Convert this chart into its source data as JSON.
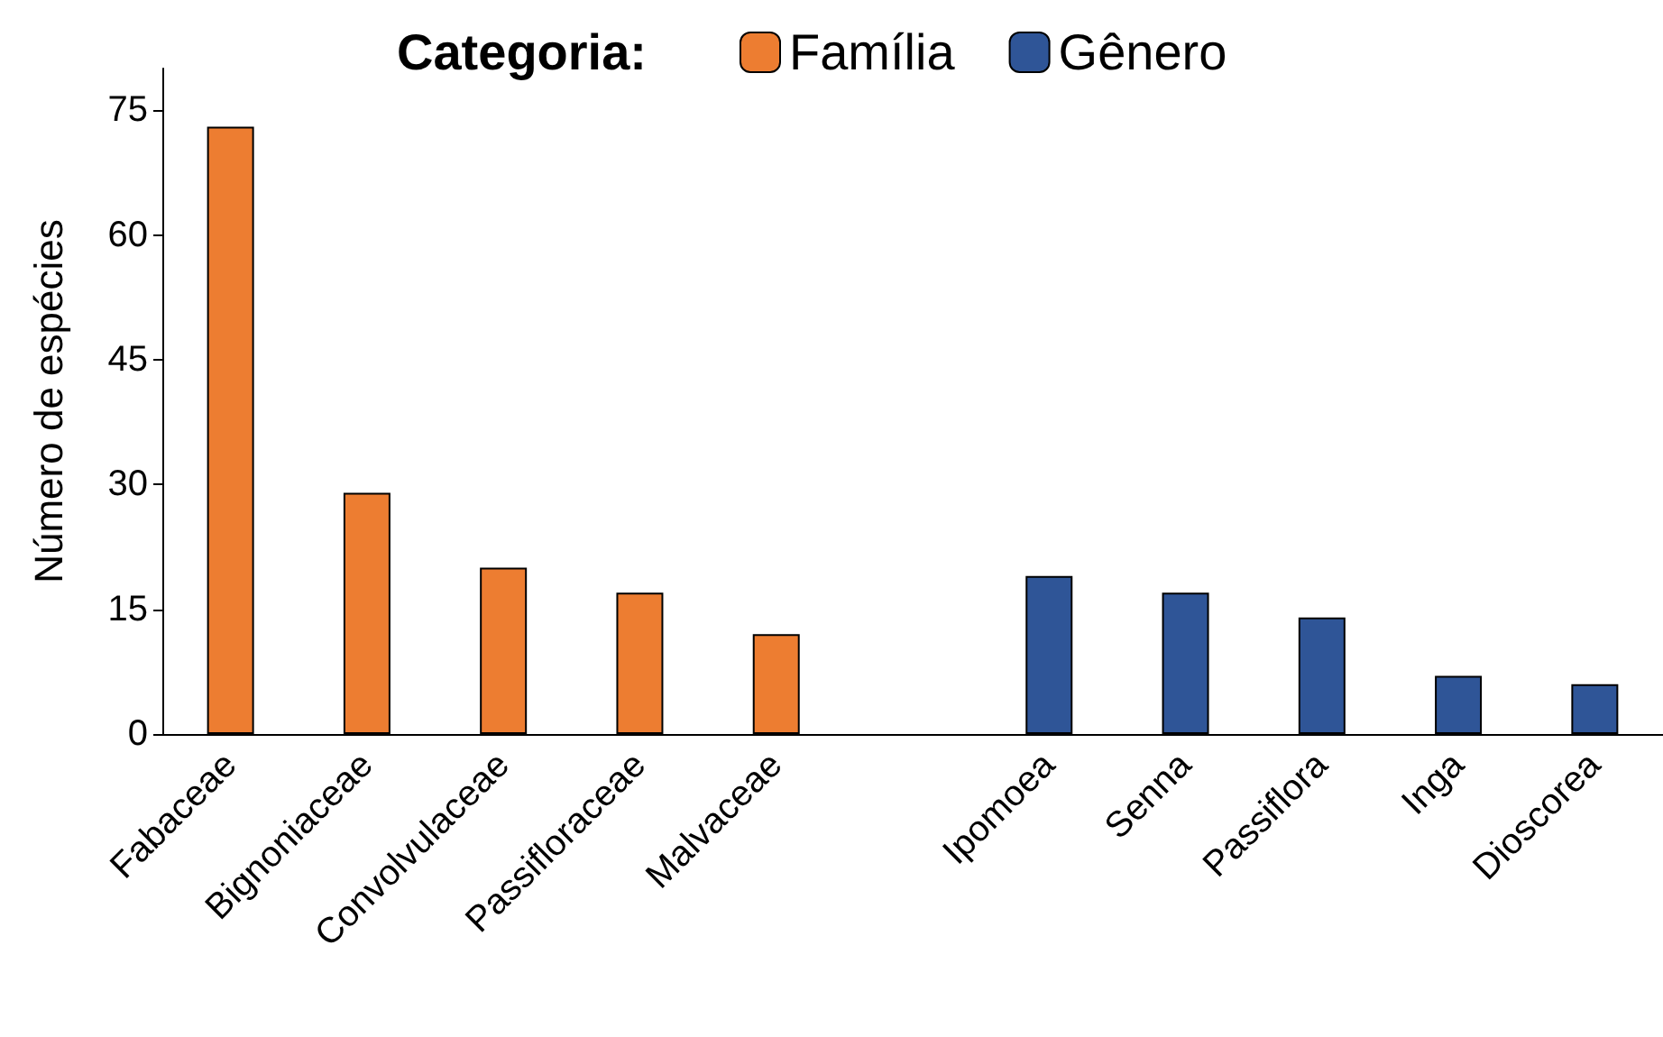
{
  "chart_data": {
    "type": "bar",
    "ylabel": "Número de espécies",
    "legend_title": "Categoria:",
    "legend": "top",
    "categories": [
      "Fabaceae",
      "Bignoniaceae",
      "Convolvulaceae",
      "Passifloraceae",
      "Malvaceae",
      null,
      "Ipomoea",
      "Senna",
      "Passiflora",
      "Inga",
      "Dioscorea"
    ],
    "series": [
      {
        "name": "Família",
        "color": "#ed7d31",
        "values": [
          73,
          29,
          20,
          17,
          12,
          null,
          null,
          null,
          null,
          null,
          null
        ]
      },
      {
        "name": "Gênero",
        "color": "#2f5597",
        "values": [
          null,
          null,
          null,
          null,
          null,
          null,
          19,
          17,
          14,
          7,
          6
        ]
      }
    ],
    "ylim": [
      0,
      80
    ],
    "yticks": [
      0,
      15,
      30,
      45,
      60,
      75
    ],
    "grid": false
  }
}
